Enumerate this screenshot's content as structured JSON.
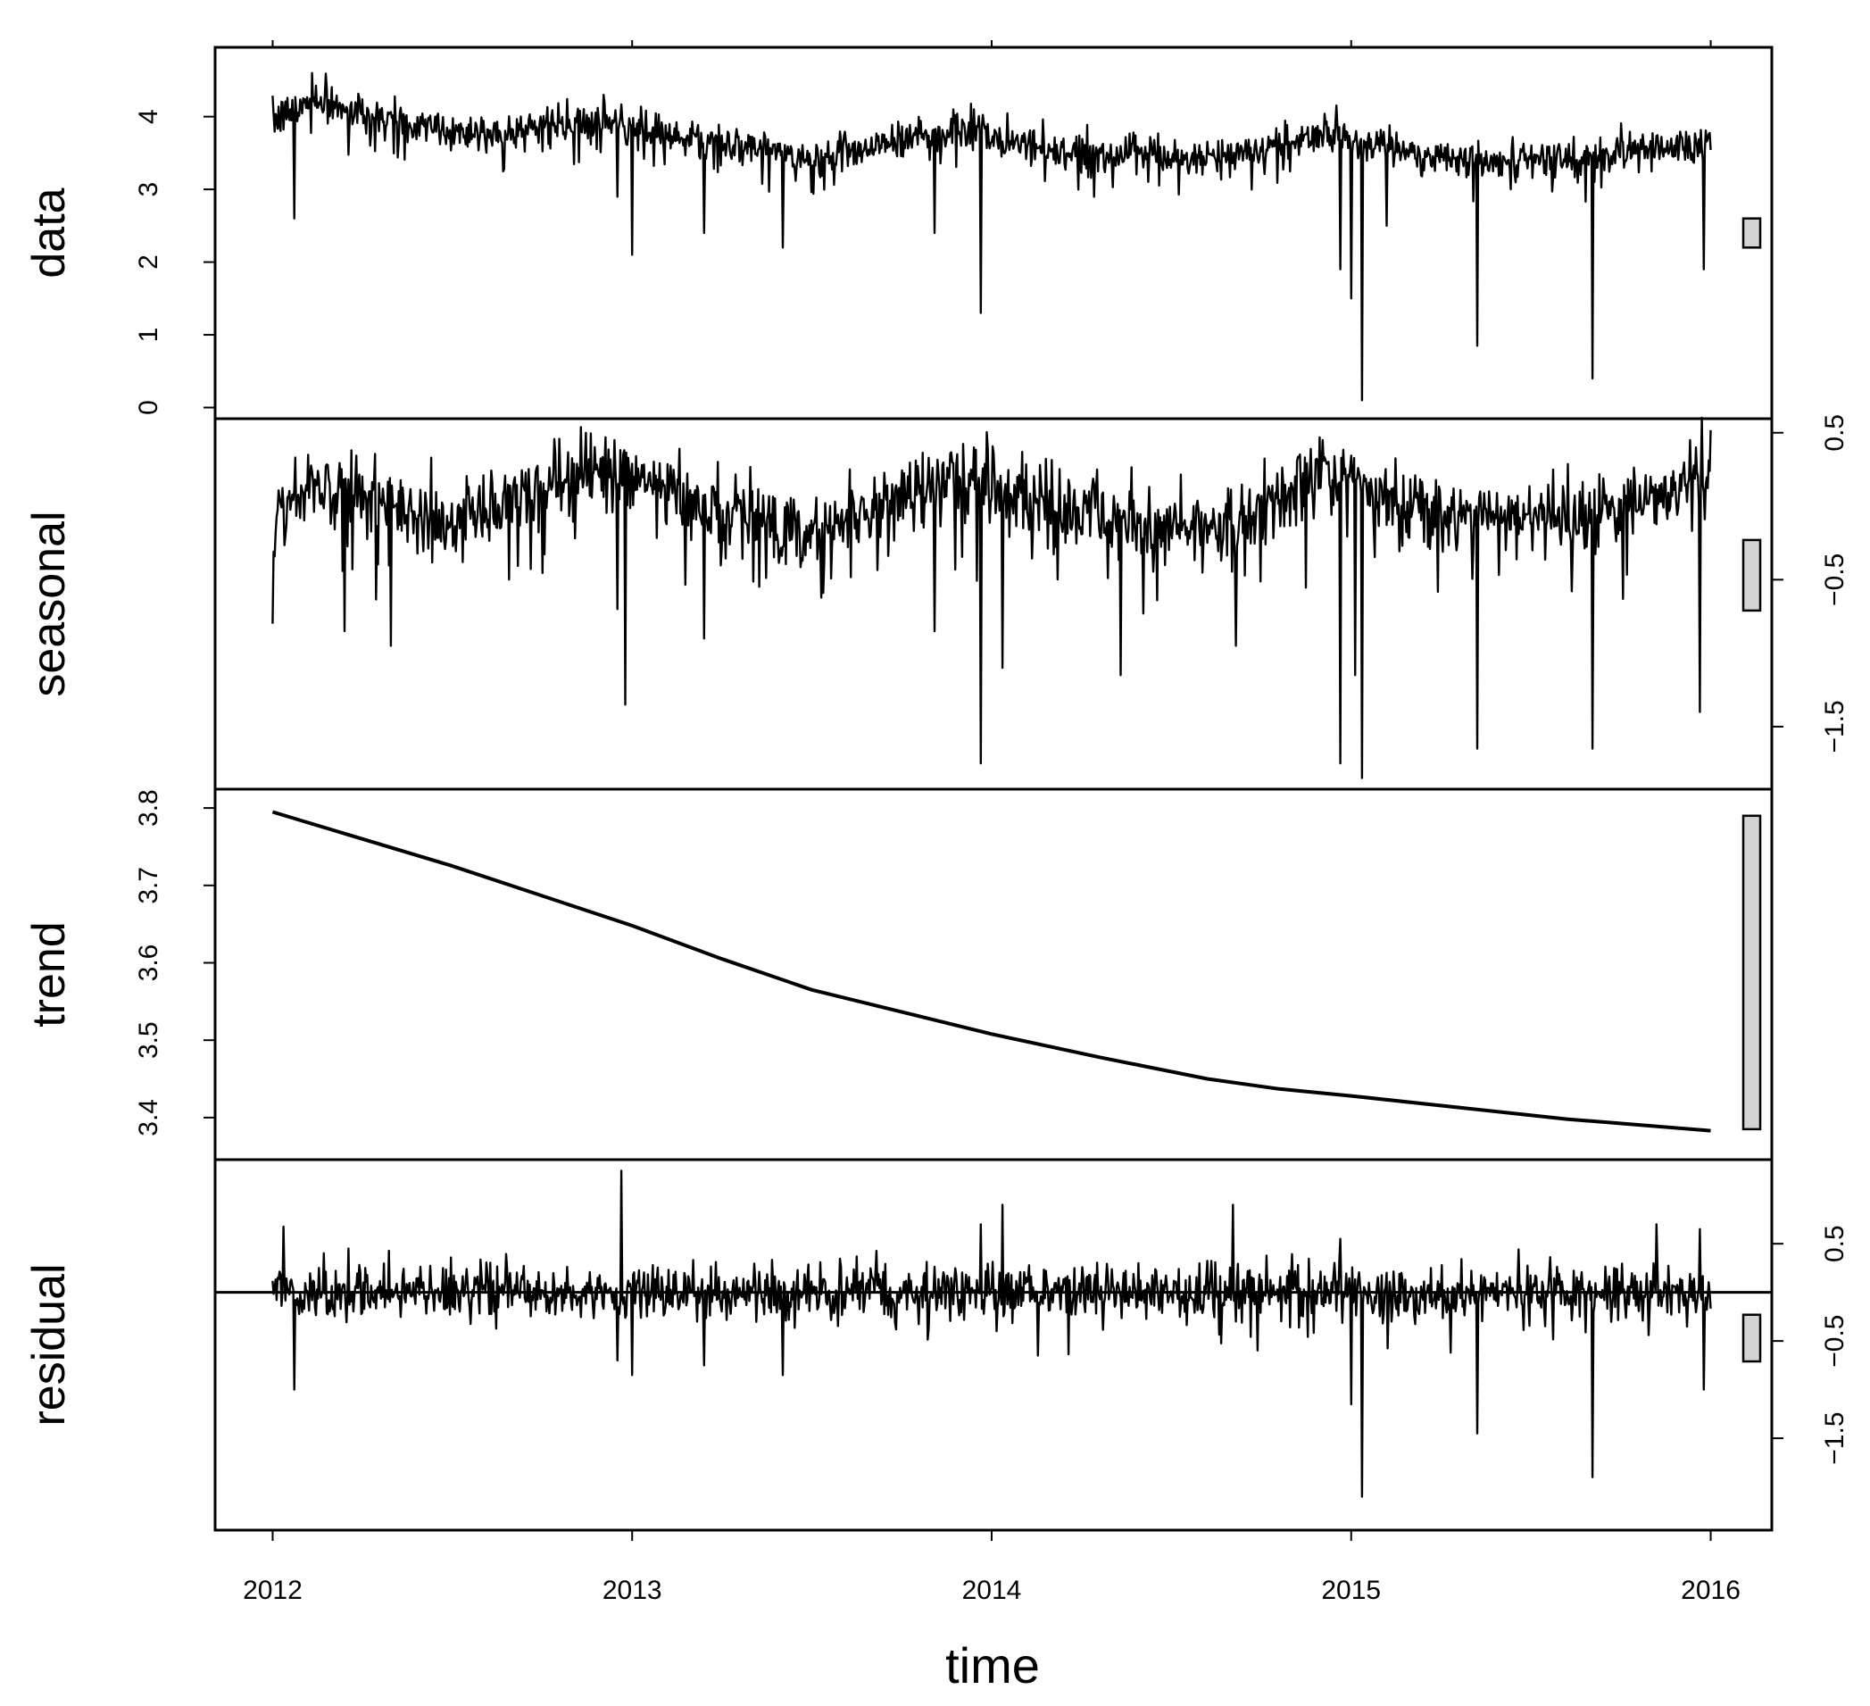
{
  "chart_data": {
    "type": "line",
    "layout": "stacked-decomposition",
    "xlabel": "time",
    "x_ticks": [
      2012,
      2013,
      2014,
      2015,
      2016
    ],
    "xlim": [
      2011.84,
      2016.17
    ],
    "x_range": [
      2012.0,
      2016.0
    ],
    "panels": [
      {
        "name": "data",
        "ylim": [
          0,
          4.8
        ],
        "ticks": [
          0,
          1,
          2,
          3,
          4
        ],
        "tick_side": "left",
        "scale_bar": [
          2.2,
          2.6
        ],
        "baseline": 3.55,
        "wave": [
          [
            2012.0,
            0.35
          ],
          [
            2012.12,
            0.7
          ],
          [
            2012.5,
            0.2
          ],
          [
            2012.9,
            0.35
          ],
          [
            2013.2,
            0.1
          ],
          [
            2013.5,
            -0.15
          ],
          [
            2013.9,
            0.3
          ],
          [
            2014.2,
            -0.05
          ],
          [
            2014.6,
            -0.15
          ],
          [
            2014.95,
            0.25
          ],
          [
            2015.3,
            -0.15
          ],
          [
            2015.7,
            -0.05
          ],
          [
            2015.95,
            0.15
          ]
        ],
        "drift": [
          3.8,
          3.38
        ],
        "noise": 0.13,
        "dips": [
          [
            2012.06,
            2.6
          ],
          [
            2012.96,
            2.9
          ],
          [
            2013.0,
            2.1
          ],
          [
            2013.2,
            2.4
          ],
          [
            2013.42,
            2.2
          ],
          [
            2013.84,
            2.4
          ],
          [
            2013.97,
            1.3
          ],
          [
            2014.97,
            1.9
          ],
          [
            2015.0,
            1.5
          ],
          [
            2015.03,
            0.1
          ],
          [
            2015.1,
            2.5
          ],
          [
            2015.35,
            0.85
          ],
          [
            2015.67,
            0.4
          ],
          [
            2015.98,
            1.9
          ]
        ],
        "spikes": [
          [
            2012.11,
            4.6
          ],
          [
            2012.92,
            4.3
          ],
          [
            2013.95,
            4.1
          ]
        ]
      },
      {
        "name": "seasonal",
        "ylim": [
          -1.85,
          0.52
        ],
        "ticks": [
          -1.5,
          -0.5,
          0.5
        ],
        "tick_side": "right",
        "scale_bar": [
          -0.71,
          -0.23
        ],
        "baseline": 0.0,
        "wave": [
          [
            2012.0,
            -0.1
          ],
          [
            2012.12,
            0.2
          ],
          [
            2012.5,
            -0.15
          ],
          [
            2012.9,
            0.3
          ],
          [
            2013.2,
            0.0
          ],
          [
            2013.5,
            -0.2
          ],
          [
            2013.9,
            0.25
          ],
          [
            2014.2,
            -0.05
          ],
          [
            2014.6,
            -0.2
          ],
          [
            2014.95,
            0.25
          ],
          [
            2015.3,
            -0.1
          ],
          [
            2015.7,
            -0.05
          ],
          [
            2015.95,
            0.2
          ]
        ],
        "drift": [
          0.0,
          0.0
        ],
        "noise": 0.13,
        "dips": [
          [
            2012.0,
            -0.8
          ],
          [
            2012.2,
            -0.85
          ],
          [
            2012.33,
            -0.95
          ],
          [
            2012.96,
            -0.7
          ],
          [
            2012.98,
            -1.35
          ],
          [
            2013.2,
            -0.9
          ],
          [
            2013.84,
            -0.85
          ],
          [
            2013.97,
            -1.75
          ],
          [
            2014.03,
            -1.1
          ],
          [
            2014.36,
            -1.15
          ],
          [
            2014.68,
            -0.95
          ],
          [
            2014.97,
            -1.75
          ],
          [
            2015.01,
            -1.15
          ],
          [
            2015.03,
            -1.85
          ],
          [
            2015.35,
            -1.65
          ],
          [
            2015.67,
            -1.65
          ],
          [
            2015.97,
            -1.4
          ]
        ],
        "spikes": [
          [
            2012.1,
            0.35
          ],
          [
            2012.95,
            0.45
          ],
          [
            2013.95,
            0.4
          ],
          [
            2014.92,
            0.45
          ],
          [
            2015.96,
            0.4
          ]
        ]
      },
      {
        "name": "trend",
        "ylim": [
          3.36,
          3.81
        ],
        "ticks": [
          3.4,
          3.5,
          3.6,
          3.7,
          3.8
        ],
        "tick_side": "left",
        "scale_bar": [
          3.385,
          3.79
        ],
        "x": [
          2012.0,
          2012.5,
          2013.0,
          2013.25,
          2013.5,
          2014.0,
          2014.3,
          2014.6,
          2014.8,
          2015.0,
          2015.3,
          2015.6,
          2016.0
        ],
        "y": [
          3.795,
          3.725,
          3.648,
          3.605,
          3.565,
          3.508,
          3.478,
          3.45,
          3.437,
          3.428,
          3.413,
          3.398,
          3.383
        ]
      },
      {
        "name": "residual",
        "ylim": [
          -2.33,
          1.25
        ],
        "ticks": [
          -1.5,
          -0.5,
          0.5
        ],
        "tick_side": "right",
        "scale_bar": [
          -0.71,
          -0.23
        ],
        "zero_line": 0,
        "noise": 0.13,
        "dips": [
          [
            2012.06,
            -1.0
          ],
          [
            2012.96,
            -0.7
          ],
          [
            2013.0,
            -0.85
          ],
          [
            2013.2,
            -0.75
          ],
          [
            2013.42,
            -0.85
          ],
          [
            2013.97,
            -1.0
          ],
          [
            2014.13,
            -0.65
          ],
          [
            2014.97,
            -0.85
          ],
          [
            2015.0,
            -1.15
          ],
          [
            2015.03,
            -2.1
          ],
          [
            2015.35,
            -1.45
          ],
          [
            2015.67,
            -1.9
          ],
          [
            2015.98,
            -1.0
          ]
        ],
        "spikes": [
          [
            2012.21,
            0.45
          ],
          [
            2012.97,
            1.25
          ],
          [
            2013.97,
            0.7
          ],
          [
            2014.03,
            0.9
          ],
          [
            2014.67,
            0.9
          ],
          [
            2014.97,
            0.55
          ],
          [
            2015.85,
            0.7
          ],
          [
            2015.97,
            0.65
          ]
        ]
      }
    ]
  }
}
